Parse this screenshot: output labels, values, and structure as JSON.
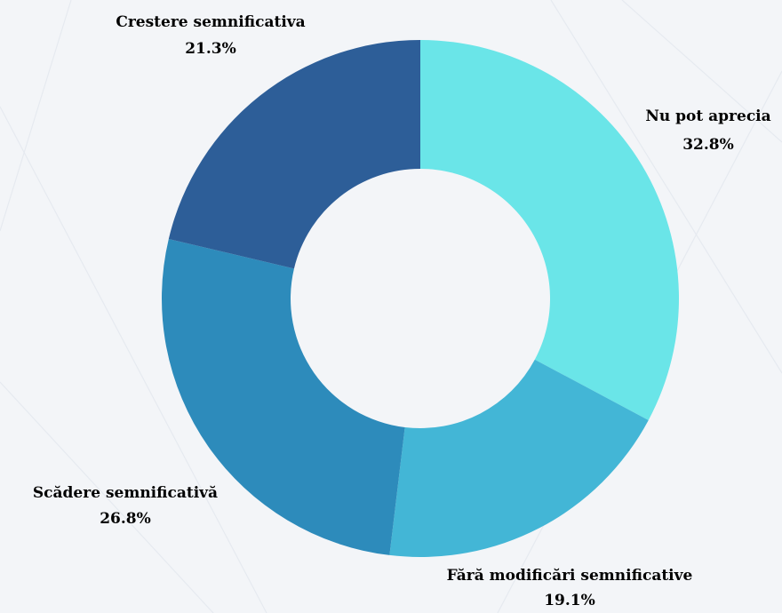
{
  "chart_data": {
    "type": "pie",
    "donut": true,
    "categories": [
      "Nu pot aprecia",
      "Fără modificări semnificative",
      "Scădere semnificativă",
      "Crestere semnificativa"
    ],
    "values": [
      32.8,
      19.1,
      26.8,
      21.3
    ],
    "value_labels": [
      "32.8%",
      "19.1%",
      "26.8%",
      "21.3%"
    ],
    "colors": [
      "#6ae5e8",
      "#43b6d6",
      "#2d8bbb",
      "#2d5e98"
    ],
    "legend": "none"
  }
}
